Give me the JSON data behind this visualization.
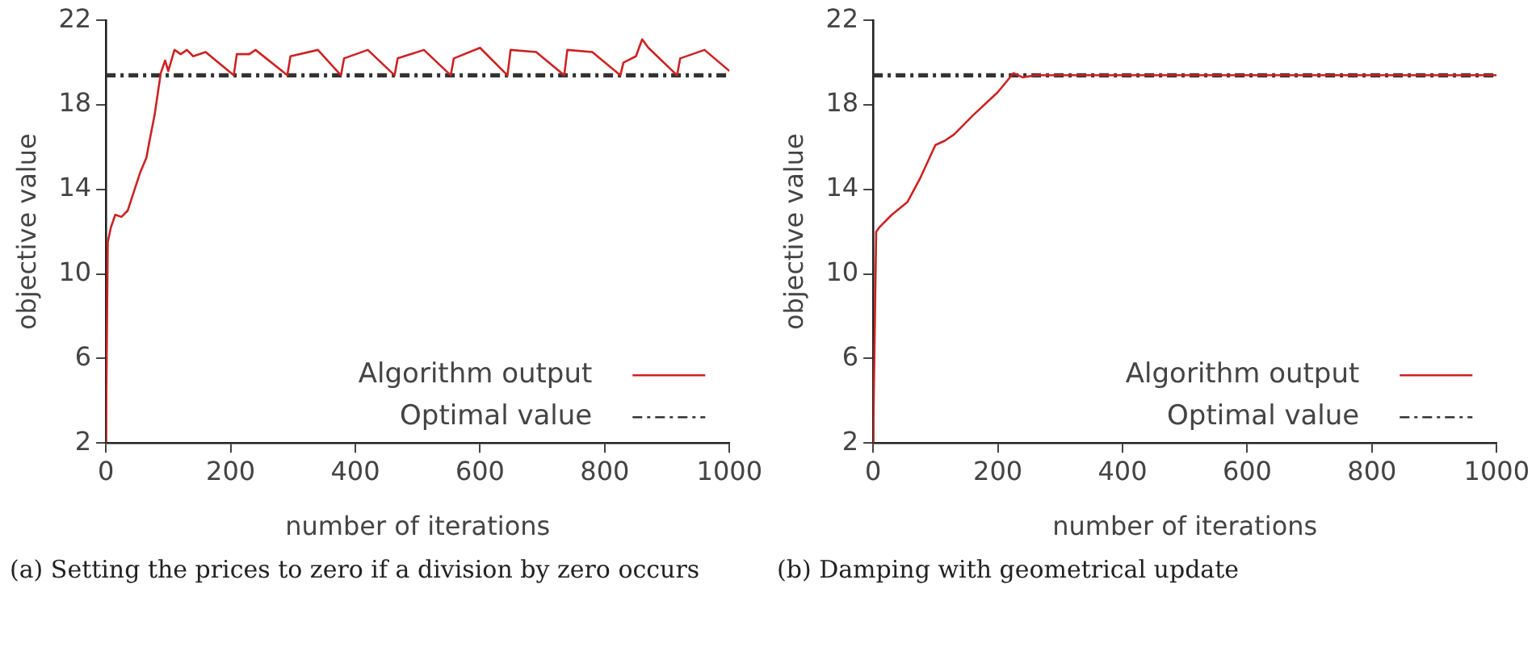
{
  "chart_data": [
    {
      "type": "line",
      "xlabel": "number of iterations",
      "ylabel": "objective value",
      "xlim": [
        0,
        1000
      ],
      "xticks": [
        0,
        200,
        400,
        600,
        800,
        1000
      ],
      "ylim": [
        2,
        22
      ],
      "yticks": [
        2,
        6,
        10,
        14,
        18,
        22
      ],
      "grid": false,
      "legend": "bottom right",
      "marker": "none",
      "annotations": [
        "(a) Setting the prices to zero if a division by zero occurs"
      ],
      "series": [
        {
          "name": "Algorithm output",
          "color": "#cc2222",
          "line_style": "solid",
          "x": [
            0,
            3,
            8,
            15,
            25,
            35,
            45,
            55,
            65,
            70,
            78,
            82,
            88,
            95,
            100,
            110,
            120,
            130,
            140,
            160,
            205,
            210,
            230,
            240,
            291,
            296,
            340,
            377,
            382,
            420,
            463,
            468,
            510,
            553,
            558,
            600,
            644,
            649,
            690,
            735,
            740,
            780,
            825,
            830,
            850,
            860,
            870,
            916,
            921,
            960,
            1000
          ],
          "values": [
            2,
            11.5,
            12.2,
            12.8,
            12.7,
            13,
            13.9,
            14.8,
            15.5,
            16.3,
            17.5,
            18.3,
            19.5,
            20.1,
            19.6,
            20.6,
            20.4,
            20.6,
            20.3,
            20.5,
            19.4,
            20.4,
            20.4,
            20.6,
            19.4,
            20.3,
            20.6,
            19.4,
            20.2,
            20.6,
            19.4,
            20.2,
            20.6,
            19.4,
            20.2,
            20.7,
            19.4,
            20.6,
            20.5,
            19.4,
            20.6,
            20.5,
            19.4,
            20.0,
            20.3,
            21.1,
            20.7,
            19.4,
            20.2,
            20.6,
            19.6
          ]
        },
        {
          "name": "Optimal value",
          "color": "#333333",
          "line_style": "dashdot",
          "x": [
            0,
            1000
          ],
          "values": [
            19.4,
            19.4
          ]
        }
      ]
    },
    {
      "type": "line",
      "xlabel": "number of iterations",
      "ylabel": "objective value",
      "xlim": [
        0,
        1000
      ],
      "xticks": [
        0,
        200,
        400,
        600,
        800,
        1000
      ],
      "ylim": [
        2,
        22
      ],
      "yticks": [
        2,
        6,
        10,
        14,
        18,
        22
      ],
      "grid": false,
      "legend": "bottom right",
      "marker": "none",
      "annotations": [
        "(b) Damping with geometrical update"
      ],
      "series": [
        {
          "name": "Algorithm output",
          "color": "#cc2222",
          "line_style": "solid",
          "x": [
            0,
            5,
            10,
            30,
            55,
            75,
            100,
            115,
            130,
            160,
            200,
            225,
            240,
            260,
            1000
          ],
          "values": [
            2,
            12,
            12.2,
            12.8,
            13.4,
            14.5,
            16.1,
            16.3,
            16.6,
            17.5,
            18.6,
            19.5,
            19.3,
            19.4,
            19.4
          ]
        },
        {
          "name": "Optimal value",
          "color": "#333333",
          "line_style": "dashdot",
          "x": [
            0,
            1000
          ],
          "values": [
            19.4,
            19.4
          ]
        }
      ]
    }
  ]
}
